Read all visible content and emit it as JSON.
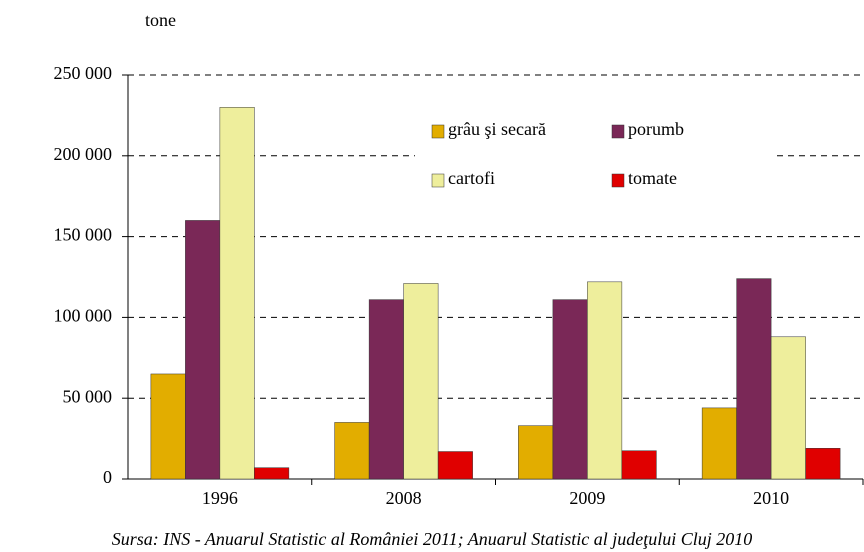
{
  "chart_data": {
    "type": "bar",
    "y_unit": "tone",
    "source": "Sursa: INS - Anuarul Statistic al României 2011; Anuarul Statistic al judeţului Cluj 2010",
    "categories": [
      "1996",
      "2008",
      "2009",
      "2010"
    ],
    "series": [
      {
        "name": "grâu şi secară",
        "color": "#e2ad00",
        "values": [
          65000,
          35000,
          33000,
          44000
        ]
      },
      {
        "name": "porumb",
        "color": "#7a2857",
        "values": [
          160000,
          111000,
          111000,
          124000
        ]
      },
      {
        "name": "cartofi",
        "color": "#eeee9c",
        "values": [
          230000,
          121000,
          122000,
          88000
        ]
      },
      {
        "name": "tomate",
        "color": "#e00000",
        "values": [
          7000,
          17000,
          17500,
          19000
        ]
      }
    ],
    "ylim": [
      0,
      250000
    ],
    "yticks": [
      0,
      {
        "value": 50000,
        "label": "50 000"
      },
      {
        "value": 100000,
        "label": "100 000"
      },
      {
        "value": 150000,
        "label": "150 000"
      },
      {
        "value": 200000,
        "label": "200 000"
      },
      {
        "value": 250000,
        "label": "250 000"
      }
    ],
    "grid": true
  }
}
